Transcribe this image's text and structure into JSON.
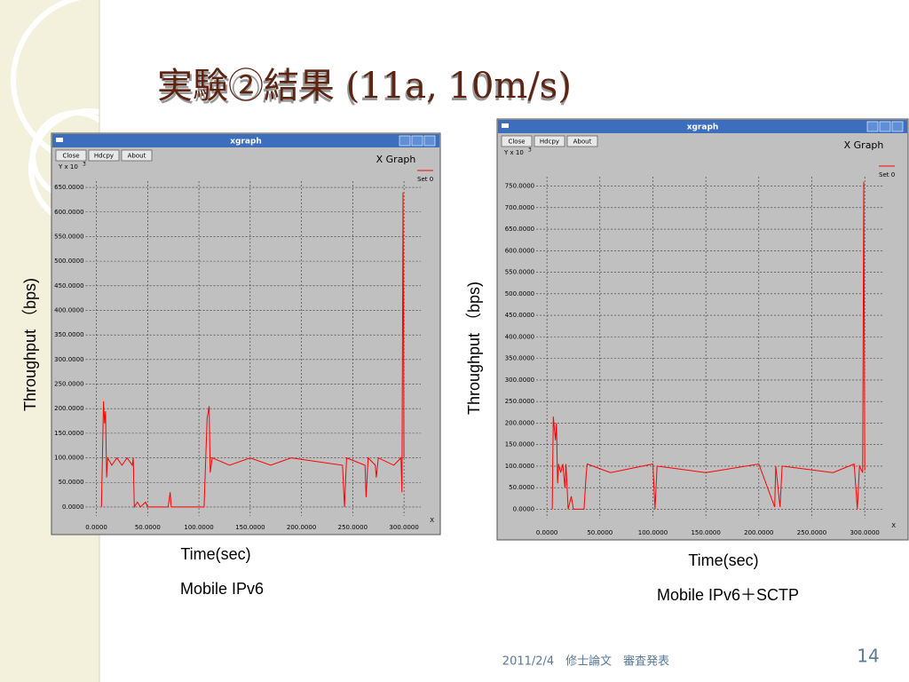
{
  "slide": {
    "title": "実験②結果 (11a, 10m/s)",
    "footer": "2011/2/4　修士論文　審査発表",
    "page": "14"
  },
  "chart_data": [
    {
      "type": "line",
      "window_title": "xgraph",
      "buttons": [
        "Close",
        "Hdcpy",
        "About"
      ],
      "title": "X Graph",
      "y_unit": "Y x 10",
      "y_unit_exp": "3",
      "x_axis_name": "X",
      "ylabel": "Throughput （bps)",
      "xlabel": "Time(sec)",
      "caption": "Mobile IPv6",
      "xlim": [
        -10,
        325
      ],
      "ylim": [
        -20,
        670
      ],
      "xticks": [
        {
          "value": 0,
          "label": "0.0000"
        },
        {
          "value": 50,
          "label": "50.0000"
        },
        {
          "value": 100,
          "label": "100.0000"
        },
        {
          "value": 150,
          "label": "150.0000"
        },
        {
          "value": 200,
          "label": "200.0000"
        },
        {
          "value": 250,
          "label": "250.0000"
        },
        {
          "value": 300,
          "label": "300.0000"
        }
      ],
      "yticks": [
        {
          "value": 0,
          "label": "0.0000"
        },
        {
          "value": 50,
          "label": "50.0000"
        },
        {
          "value": 100,
          "label": "100.0000"
        },
        {
          "value": 150,
          "label": "150.0000"
        },
        {
          "value": 200,
          "label": "200.0000"
        },
        {
          "value": 250,
          "label": "250.0000"
        },
        {
          "value": 300,
          "label": "300.0000"
        },
        {
          "value": 350,
          "label": "350.0000"
        },
        {
          "value": 400,
          "label": "400.0000"
        },
        {
          "value": 450,
          "label": "450.0000"
        },
        {
          "value": 500,
          "label": "500.0000"
        },
        {
          "value": 550,
          "label": "550.0000"
        },
        {
          "value": 600,
          "label": "600.0000"
        },
        {
          "value": 650,
          "label": "650.0000"
        }
      ],
      "grid": true,
      "x": [
        5,
        7,
        8,
        9,
        10,
        11,
        15,
        20,
        25,
        30,
        35,
        36,
        37,
        40,
        43,
        48,
        50,
        70,
        72,
        73,
        105,
        108,
        110,
        111,
        113,
        130,
        150,
        170,
        190,
        240,
        242,
        244,
        262,
        263,
        265,
        272,
        273,
        275,
        290,
        297,
        298,
        299,
        300
      ],
      "series": [
        {
          "name": "Set 0",
          "color": "#ff0000",
          "values": [
            0,
            215,
            170,
            195,
            60,
            100,
            85,
            100,
            85,
            100,
            85,
            100,
            0,
            10,
            0,
            10,
            0,
            0,
            30,
            0,
            0,
            180,
            205,
            70,
            100,
            85,
            100,
            85,
            100,
            85,
            0,
            100,
            85,
            20,
            100,
            85,
            60,
            100,
            85,
            100,
            30,
            640,
            100
          ]
        }
      ]
    },
    {
      "type": "line",
      "window_title": "xgraph",
      "buttons": [
        "Close",
        "Hdcpy",
        "About"
      ],
      "title": "X Graph",
      "y_unit": "Y x 10",
      "y_unit_exp": "3",
      "x_axis_name": "X",
      "ylabel": "Throughput （bps)",
      "xlabel": "Time(sec)",
      "caption": "Mobile IPv6＋SCTP",
      "xlim": [
        -11,
        325
      ],
      "ylim": [
        -30,
        780
      ],
      "xticks": [
        {
          "value": 0,
          "label": "0.0000"
        },
        {
          "value": 50,
          "label": "50.0000"
        },
        {
          "value": 100,
          "label": "100.0000"
        },
        {
          "value": 150,
          "label": "150.0000"
        },
        {
          "value": 200,
          "label": "200.0000"
        },
        {
          "value": 250,
          "label": "250.0000"
        },
        {
          "value": 300,
          "label": "300.0000"
        }
      ],
      "yticks": [
        {
          "value": 0,
          "label": "0.0000"
        },
        {
          "value": 50,
          "label": "50.0000"
        },
        {
          "value": 100,
          "label": "100.0000"
        },
        {
          "value": 150,
          "label": "150.0000"
        },
        {
          "value": 200,
          "label": "200.0000"
        },
        {
          "value": 250,
          "label": "250.0000"
        },
        {
          "value": 300,
          "label": "300.0000"
        },
        {
          "value": 350,
          "label": "350.0000"
        },
        {
          "value": 400,
          "label": "400.0000"
        },
        {
          "value": 450,
          "label": "450.0000"
        },
        {
          "value": 500,
          "label": "500.0000"
        },
        {
          "value": 550,
          "label": "550.0000"
        },
        {
          "value": 600,
          "label": "600.0000"
        },
        {
          "value": 650,
          "label": "650.0000"
        },
        {
          "value": 700,
          "label": "700.0000"
        },
        {
          "value": 750,
          "label": "750.0000"
        }
      ],
      "grid": true,
      "x": [
        5,
        6,
        8,
        9,
        10,
        11,
        13,
        15,
        17,
        18,
        20,
        23,
        25,
        35,
        37,
        38,
        60,
        100,
        102,
        104,
        150,
        200,
        215,
        216,
        220,
        222,
        270,
        290,
        293,
        295,
        298,
        299,
        300
      ],
      "series": [
        {
          "name": "Set 0",
          "color": "#ff0000",
          "values": [
            0,
            215,
            160,
            200,
            60,
            105,
            85,
            105,
            50,
            105,
            0,
            30,
            0,
            0,
            80,
            105,
            85,
            105,
            0,
            100,
            85,
            105,
            5,
            100,
            5,
            100,
            85,
            105,
            0,
            100,
            85,
            760,
            90
          ]
        }
      ]
    }
  ]
}
